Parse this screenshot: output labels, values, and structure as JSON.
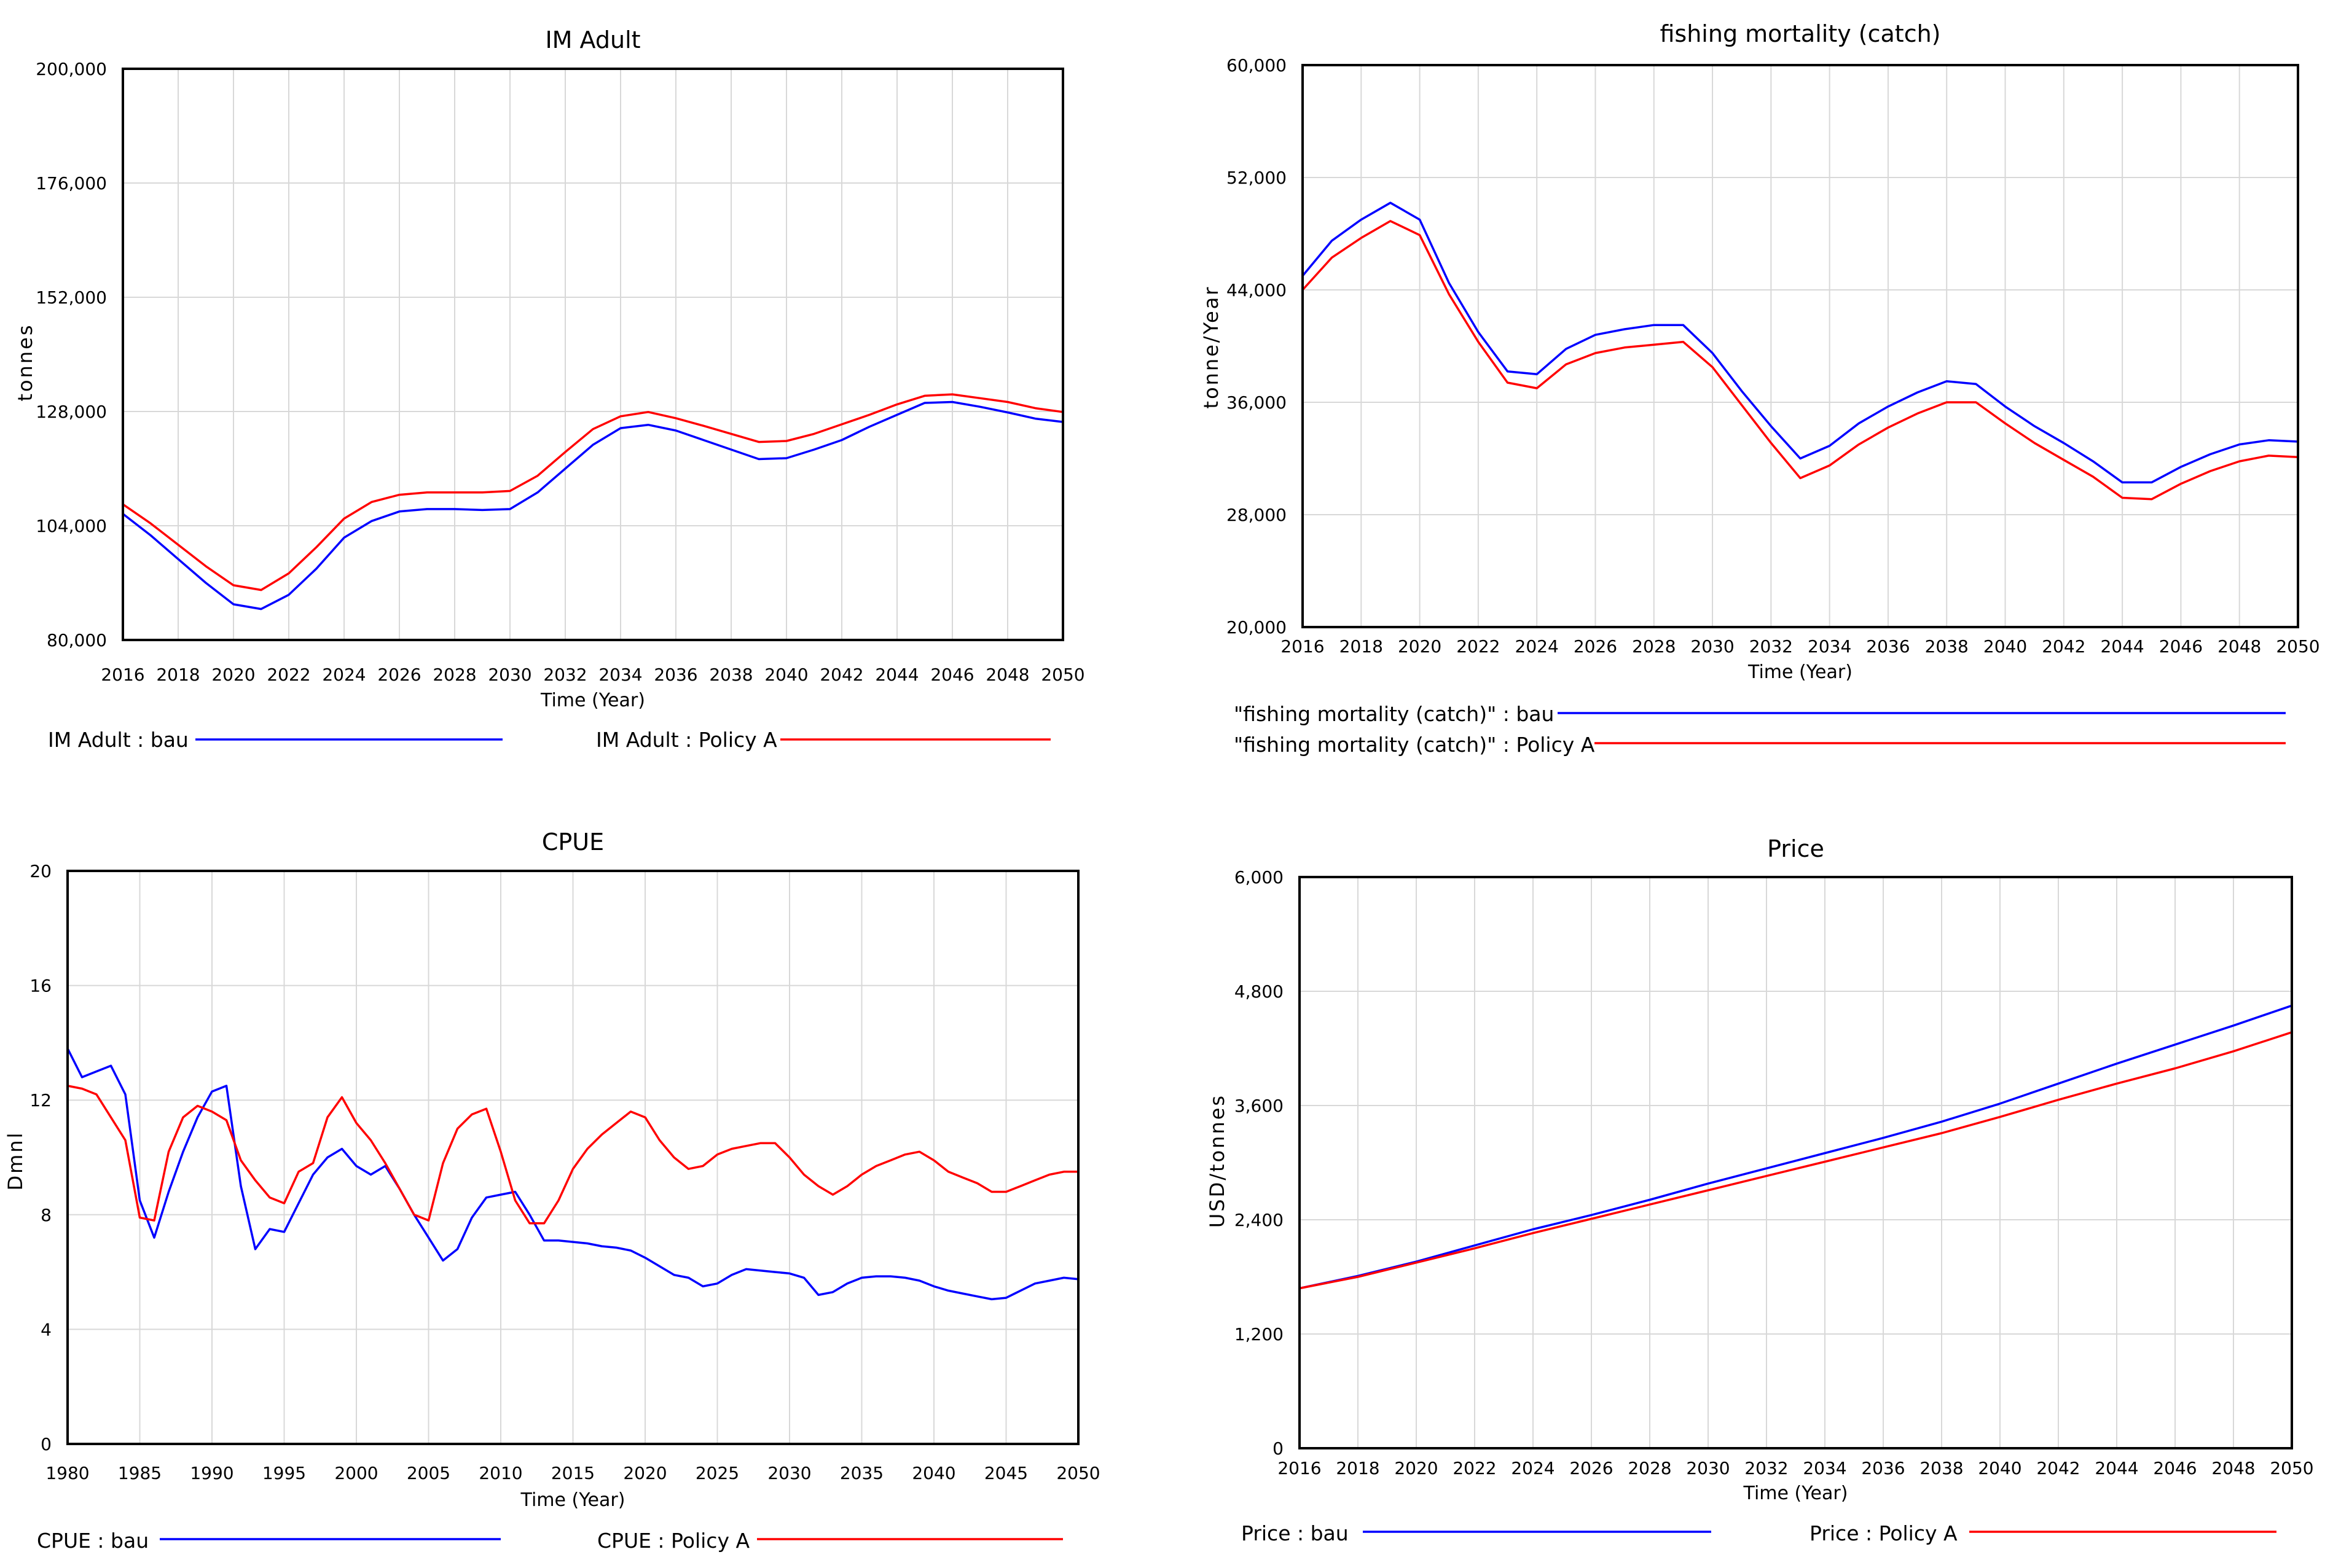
{
  "colors": {
    "bau": "#0000ff",
    "policy": "#ff0000",
    "grid": "#d8d8d8"
  },
  "time_axis_label": "Time (Year)",
  "chart_data": [
    {
      "type": "line",
      "title": "IM Adult",
      "xlabel": "Time (Year)",
      "ylabel": "tonnes",
      "xlim": [
        2016,
        2050
      ],
      "ylim": [
        80000,
        200000
      ],
      "x_ticks": [
        2016,
        2018,
        2020,
        2022,
        2024,
        2026,
        2028,
        2030,
        2032,
        2034,
        2036,
        2038,
        2040,
        2042,
        2044,
        2046,
        2048,
        2050
      ],
      "x_tick_labels": [
        "2016",
        "2018",
        "2020",
        "2022",
        "2024",
        "2026",
        "2028",
        "2030",
        "2032",
        "2034",
        "2036",
        "2038",
        "2040",
        "2042",
        "2044",
        "2046",
        "2048",
        "2050"
      ],
      "y_ticks": [
        80000,
        104000,
        128000,
        152000,
        176000,
        200000
      ],
      "y_tick_labels": [
        "80,000",
        "104,000",
        "128,000",
        "152,000",
        "176,000",
        "200,000"
      ],
      "x": [
        2016,
        2017,
        2018,
        2019,
        2020,
        2021,
        2022,
        2023,
        2024,
        2025,
        2026,
        2027,
        2028,
        2029,
        2030,
        2031,
        2032,
        2033,
        2034,
        2035,
        2036,
        2037,
        2038,
        2039,
        2040,
        2041,
        2042,
        2043,
        2044,
        2045,
        2046,
        2047,
        2048,
        2049,
        2050
      ],
      "series": [
        {
          "name": "bau",
          "legend": "IM Adult : bau",
          "color": "#0000ff",
          "values": [
            106500,
            102000,
            97000,
            92000,
            87500,
            86500,
            89500,
            95000,
            101500,
            105000,
            107000,
            107500,
            107500,
            107300,
            107500,
            111000,
            116000,
            121000,
            124500,
            125200,
            124000,
            122000,
            120000,
            118000,
            118200,
            120000,
            122000,
            124800,
            127300,
            129800,
            130000,
            129000,
            127800,
            126500,
            125800
          ]
        },
        {
          "name": "Policy A",
          "legend": "IM Adult : Policy A",
          "color": "#ff0000",
          "values": [
            108500,
            104500,
            100000,
            95500,
            91500,
            90500,
            94000,
            99500,
            105500,
            109000,
            110500,
            111000,
            111000,
            111000,
            111300,
            114500,
            119500,
            124300,
            127000,
            127900,
            126600,
            125000,
            123300,
            121600,
            121800,
            123300,
            125300,
            127300,
            129500,
            131300,
            131600,
            130800,
            130000,
            128700,
            127900
          ]
        }
      ]
    },
    {
      "type": "line",
      "title": "fishing mortality (catch)",
      "xlabel": "Time (Year)",
      "ylabel": "tonne/Year",
      "xlim": [
        2016,
        2050
      ],
      "ylim": [
        20000,
        60000
      ],
      "x_ticks": [
        2016,
        2018,
        2020,
        2022,
        2024,
        2026,
        2028,
        2030,
        2032,
        2034,
        2036,
        2038,
        2040,
        2042,
        2044,
        2046,
        2048,
        2050
      ],
      "x_tick_labels": [
        "2016",
        "2018",
        "2020",
        "2022",
        "2024",
        "2026",
        "2028",
        "2030",
        "2032",
        "2034",
        "2036",
        "2038",
        "2040",
        "2042",
        "2044",
        "2046",
        "2048",
        "2050"
      ],
      "y_ticks": [
        20000,
        28000,
        36000,
        44000,
        52000,
        60000
      ],
      "y_tick_labels": [
        "20,000",
        "28,000",
        "36,000",
        "44,000",
        "52,000",
        "60,000"
      ],
      "x": [
        2016,
        2017,
        2018,
        2019,
        2020,
        2021,
        2022,
        2023,
        2024,
        2025,
        2026,
        2027,
        2028,
        2029,
        2030,
        2031,
        2032,
        2033,
        2034,
        2035,
        2036,
        2037,
        2038,
        2039,
        2040,
        2041,
        2042,
        2043,
        2044,
        2045,
        2046,
        2047,
        2048,
        2049,
        2050
      ],
      "series": [
        {
          "name": "bau",
          "legend": "\"fishing mortality (catch)\" : bau",
          "color": "#0000ff",
          "values": [
            45000,
            47500,
            49000,
            50200,
            49000,
            44500,
            41000,
            38200,
            38000,
            39800,
            40800,
            41200,
            41500,
            41500,
            39500,
            36800,
            34300,
            32000,
            32900,
            34500,
            35700,
            36700,
            37500,
            37300,
            35700,
            34300,
            33100,
            31800,
            30300,
            30300,
            31400,
            32300,
            33000,
            33300,
            33200
          ]
        },
        {
          "name": "Policy A",
          "legend": "\"fishing mortality (catch)\" : Policy A",
          "color": "#ff0000",
          "values": [
            44000,
            46300,
            47700,
            48900,
            47900,
            43700,
            40300,
            37400,
            37000,
            38700,
            39500,
            39900,
            40100,
            40300,
            38500,
            35800,
            33100,
            30600,
            31500,
            33000,
            34200,
            35200,
            36000,
            36000,
            34500,
            33100,
            31900,
            30700,
            29200,
            29100,
            30200,
            31100,
            31800,
            32200,
            32100
          ]
        }
      ]
    },
    {
      "type": "line",
      "title": "CPUE",
      "xlabel": "Time (Year)",
      "ylabel": "Dmnl",
      "xlim": [
        1980,
        2050
      ],
      "ylim": [
        0,
        20
      ],
      "x_ticks": [
        1980,
        1985,
        1990,
        1995,
        2000,
        2005,
        2010,
        2015,
        2020,
        2025,
        2030,
        2035,
        2040,
        2045,
        2050
      ],
      "x_tick_labels": [
        "1980",
        "1985",
        "1990",
        "1995",
        "2000",
        "2005",
        "2010",
        "2015",
        "2020",
        "2025",
        "2030",
        "2035",
        "2040",
        "2045",
        "2050"
      ],
      "y_ticks": [
        0,
        4,
        8,
        12,
        16,
        20
      ],
      "y_tick_labels": [
        "0",
        "4",
        "8",
        "12",
        "16",
        "20"
      ],
      "x": [
        1980,
        1981,
        1982,
        1983,
        1984,
        1985,
        1986,
        1987,
        1988,
        1989,
        1990,
        1991,
        1992,
        1993,
        1994,
        1995,
        1996,
        1997,
        1998,
        1999,
        2000,
        2001,
        2002,
        2003,
        2004,
        2005,
        2006,
        2007,
        2008,
        2009,
        2010,
        2011,
        2012,
        2013,
        2014,
        2015,
        2016,
        2017,
        2018,
        2019,
        2020,
        2021,
        2022,
        2023,
        2024,
        2025,
        2026,
        2027,
        2028,
        2029,
        2030,
        2031,
        2032,
        2033,
        2034,
        2035,
        2036,
        2037,
        2038,
        2039,
        2040,
        2041,
        2042,
        2043,
        2044,
        2045,
        2046,
        2047,
        2048,
        2049,
        2050
      ],
      "series": [
        {
          "name": "bau",
          "legend": "CPUE : bau",
          "color": "#0000ff",
          "values": [
            13.8,
            12.8,
            13.0,
            13.2,
            12.2,
            8.5,
            7.2,
            8.8,
            10.2,
            11.4,
            12.3,
            12.5,
            9.0,
            6.8,
            7.5,
            7.4,
            8.4,
            9.4,
            10.0,
            10.3,
            9.7,
            9.4,
            9.7,
            8.9,
            8.0,
            7.2,
            6.4,
            6.8,
            7.9,
            8.6,
            8.7,
            8.8,
            8.0,
            7.1,
            7.1,
            7.05,
            7.0,
            6.9,
            6.85,
            6.75,
            6.5,
            6.2,
            5.9,
            5.8,
            5.5,
            5.6,
            5.9,
            6.1,
            6.05,
            6.0,
            5.95,
            5.8,
            5.2,
            5.3,
            5.6,
            5.8,
            5.85,
            5.85,
            5.8,
            5.7,
            5.5,
            5.35,
            5.25,
            5.15,
            5.05,
            5.1,
            5.35,
            5.6,
            5.7,
            5.8,
            5.75
          ]
        },
        {
          "name": "Policy A",
          "legend": "CPUE : Policy A",
          "color": "#ff0000",
          "values": [
            12.5,
            12.4,
            12.2,
            11.4,
            10.6,
            7.9,
            7.8,
            10.2,
            11.4,
            11.8,
            11.6,
            11.3,
            9.9,
            9.2,
            8.6,
            8.4,
            9.5,
            9.8,
            11.4,
            12.1,
            11.2,
            10.6,
            9.8,
            8.9,
            8.0,
            7.8,
            9.8,
            11.0,
            11.5,
            11.7,
            10.2,
            8.5,
            7.7,
            7.7,
            8.5,
            9.6,
            10.3,
            10.8,
            11.2,
            11.6,
            11.4,
            10.6,
            10.0,
            9.6,
            9.7,
            10.1,
            10.3,
            10.4,
            10.5,
            10.5,
            10.0,
            9.4,
            9.0,
            8.7,
            9.0,
            9.4,
            9.7,
            9.9,
            10.1,
            10.2,
            9.9,
            9.5,
            9.3,
            9.1,
            8.8,
            8.8,
            9.0,
            9.2,
            9.4,
            9.5,
            9.5
          ]
        }
      ]
    },
    {
      "type": "line",
      "title": "Price",
      "xlabel": "Time (Year)",
      "ylabel": "USD/tonnes",
      "xlim": [
        2016,
        2050
      ],
      "ylim": [
        0,
        6000
      ],
      "x_ticks": [
        2016,
        2018,
        2020,
        2022,
        2024,
        2026,
        2028,
        2030,
        2032,
        2034,
        2036,
        2038,
        2040,
        2042,
        2044,
        2046,
        2048,
        2050
      ],
      "x_tick_labels": [
        "2016",
        "2018",
        "2020",
        "2022",
        "2024",
        "2026",
        "2028",
        "2030",
        "2032",
        "2034",
        "2036",
        "2038",
        "2040",
        "2042",
        "2044",
        "2046",
        "2048",
        "2050"
      ],
      "y_ticks": [
        0,
        1200,
        2400,
        3600,
        4800,
        6000
      ],
      "y_tick_labels": [
        "0",
        "1,200",
        "2,400",
        "3,600",
        "4,800",
        "6,000"
      ],
      "x": [
        2016,
        2018,
        2020,
        2022,
        2024,
        2026,
        2028,
        2030,
        2032,
        2034,
        2036,
        2038,
        2040,
        2042,
        2044,
        2046,
        2048,
        2050
      ],
      "series": [
        {
          "name": "bau",
          "legend": "Price : bau",
          "color": "#0000ff",
          "values": [
            1680,
            1810,
            1960,
            2130,
            2300,
            2450,
            2610,
            2780,
            2940,
            3100,
            3260,
            3430,
            3620,
            3830,
            4040,
            4240,
            4440,
            4650
          ]
        },
        {
          "name": "Policy A",
          "legend": "Price : Policy A",
          "color": "#ff0000",
          "values": [
            1680,
            1800,
            1950,
            2100,
            2260,
            2410,
            2560,
            2710,
            2860,
            3010,
            3160,
            3310,
            3480,
            3660,
            3830,
            3990,
            4170,
            4370
          ]
        }
      ]
    }
  ]
}
